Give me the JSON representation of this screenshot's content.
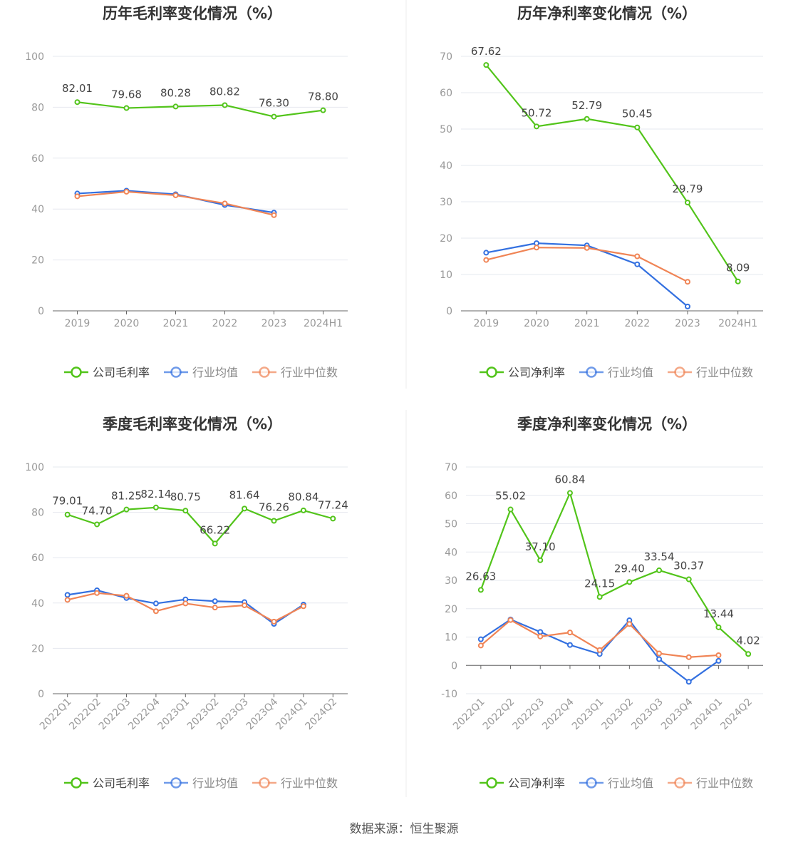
{
  "colors": {
    "company": "#52c41a",
    "avg": "#3370e0",
    "median": "#f08455",
    "grid": "#e6e8ef",
    "axis": "#666666",
    "text": "#999999",
    "divider": "#eeeeee"
  },
  "footer": {
    "source": "数据来源：恒生聚源"
  },
  "chart_data": [
    {
      "type": "line",
      "title": "历年毛利率变化情况（%）",
      "categories": [
        "2019",
        "2020",
        "2021",
        "2022",
        "2023",
        "2024H1"
      ],
      "ylim": [
        0,
        100
      ],
      "yticks": [
        0,
        20,
        40,
        60,
        80,
        100
      ],
      "legend": "bottom",
      "series": [
        {
          "name": "公司毛利率",
          "key": "company",
          "values": [
            82.01,
            79.68,
            80.28,
            80.82,
            76.3,
            78.8
          ],
          "labels": [
            "82.01",
            "79.68",
            "80.28",
            "80.82",
            "76.30",
            "78.80"
          ]
        },
        {
          "name": "行业均值",
          "key": "avg",
          "values": [
            46.1,
            47.2,
            45.8,
            41.6,
            38.6,
            null
          ]
        },
        {
          "name": "行业中位数",
          "key": "median",
          "values": [
            45.0,
            46.8,
            45.4,
            42.2,
            37.6,
            null
          ]
        }
      ]
    },
    {
      "type": "line",
      "title": "历年净利率变化情况（%）",
      "categories": [
        "2019",
        "2020",
        "2021",
        "2022",
        "2023",
        "2024H1"
      ],
      "ylim": [
        0,
        70
      ],
      "yticks": [
        0,
        10,
        20,
        30,
        40,
        50,
        60,
        70
      ],
      "legend": "bottom",
      "series": [
        {
          "name": "公司净利率",
          "key": "company",
          "values": [
            67.62,
            50.72,
            52.79,
            50.45,
            29.79,
            8.09
          ],
          "labels": [
            "67.62",
            "50.72",
            "52.79",
            "50.45",
            "29.79",
            "8.09"
          ]
        },
        {
          "name": "行业均值",
          "key": "avg",
          "values": [
            16.0,
            18.6,
            18.0,
            12.8,
            1.2,
            null
          ]
        },
        {
          "name": "行业中位数",
          "key": "median",
          "values": [
            14.0,
            17.4,
            17.3,
            15.0,
            8.0,
            null
          ]
        }
      ]
    },
    {
      "type": "line",
      "title": "季度毛利率变化情况（%）",
      "categories": [
        "2022Q1",
        "2022Q2",
        "2022Q3",
        "2022Q4",
        "2023Q1",
        "2023Q2",
        "2023Q3",
        "2023Q4",
        "2024Q1",
        "2024Q2"
      ],
      "ylim": [
        0,
        100
      ],
      "yticks": [
        0,
        20,
        40,
        60,
        80,
        100
      ],
      "legend": "bottom",
      "series": [
        {
          "name": "公司毛利率",
          "key": "company",
          "values": [
            79.01,
            74.7,
            81.25,
            82.14,
            80.75,
            66.22,
            81.64,
            76.26,
            80.84,
            77.24
          ],
          "labels": [
            "79.01",
            "74.70",
            "81.25",
            "82.14",
            "80.75",
            "66.22",
            "81.64",
            "76.26",
            "80.84",
            "77.24"
          ]
        },
        {
          "name": "行业均值",
          "key": "avg",
          "values": [
            43.6,
            45.6,
            42.2,
            39.8,
            41.6,
            40.8,
            40.4,
            30.8,
            39.3,
            null
          ]
        },
        {
          "name": "行业中位数",
          "key": "median",
          "values": [
            41.4,
            44.4,
            43.2,
            36.4,
            39.8,
            38.0,
            39.0,
            31.8,
            38.6,
            null
          ]
        }
      ]
    },
    {
      "type": "line",
      "title": "季度净利率变化情况（%）",
      "categories": [
        "2022Q1",
        "2022Q2",
        "2022Q3",
        "2022Q4",
        "2023Q1",
        "2023Q2",
        "2023Q3",
        "2023Q4",
        "2024Q1",
        "2024Q2"
      ],
      "ylim": [
        -10,
        70
      ],
      "yticks": [
        -10,
        0,
        10,
        20,
        30,
        40,
        50,
        60,
        70
      ],
      "legend": "bottom",
      "series": [
        {
          "name": "公司净利率",
          "key": "company",
          "values": [
            26.63,
            55.02,
            37.1,
            60.84,
            24.15,
            29.4,
            33.54,
            30.37,
            13.44,
            4.02
          ],
          "labels": [
            "26.63",
            "55.02",
            "37.10",
            "60.84",
            "24.15",
            "29.40",
            "33.54",
            "30.37",
            "13.44",
            "4.02"
          ]
        },
        {
          "name": "行业均值",
          "key": "avg",
          "values": [
            9.2,
            16.2,
            11.8,
            7.2,
            4.0,
            15.9,
            2.2,
            -5.8,
            1.6,
            null
          ]
        },
        {
          "name": "行业中位数",
          "key": "median",
          "values": [
            7.0,
            16.0,
            10.2,
            11.6,
            5.4,
            14.6,
            4.2,
            2.9,
            3.6,
            null
          ]
        }
      ]
    }
  ]
}
